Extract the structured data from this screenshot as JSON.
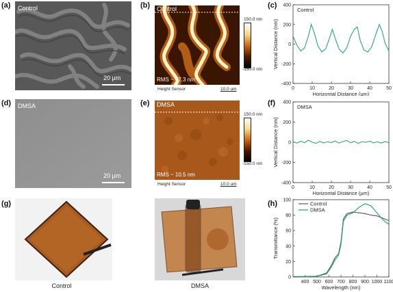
{
  "panel_labels": {
    "a": "(a)",
    "b": "(b)",
    "c": "(c)",
    "d": "(d)",
    "e": "(e)",
    "f": "(f)",
    "g": "(g)",
    "h": "(h)"
  },
  "sem": {
    "a_label": "Control",
    "a_scale": "20 μm",
    "d_label": "DMSA",
    "d_scale": "20 μm"
  },
  "afm": {
    "b_label": "Control",
    "b_rms": "RMS ~ 77.3 nm",
    "b_sensor": "Height Sensor",
    "b_scale": "10.0 um",
    "b_cb_top": "150.0 nm",
    "b_cb_bottom": "-150.0 nm",
    "e_label": "DMSA",
    "e_rms": "RMS ~ 10.5 nm",
    "e_sensor": "Height Sensor",
    "e_scale": "10.0 um",
    "e_cb_top": "150.0 nm",
    "e_cb_bottom": "-150.0 nm"
  },
  "photos": {
    "g_left_caption": "Control",
    "g_right_caption": "DMSA"
  },
  "colors": {
    "trace": "#2aa383",
    "control_line": "#555555",
    "dmsa_line": "#1a9a7e"
  },
  "chart_data": [
    {
      "id": "c",
      "type": "line",
      "legend_text": "Control",
      "xlabel": "Horizontal Distance (μm)",
      "ylabel": "Vertical Distance (nm)",
      "xlim": [
        0,
        50
      ],
      "ylim": [
        -400,
        400
      ],
      "xticks": [
        0,
        10,
        20,
        30,
        40,
        50
      ],
      "yticks": [
        -400,
        -200,
        0,
        200,
        400
      ],
      "x": [
        0,
        2,
        4,
        6,
        8,
        9.5,
        11,
        13,
        15,
        17,
        19,
        20.5,
        22,
        24,
        26,
        28,
        30,
        32,
        33.5,
        35,
        37,
        39,
        41,
        43,
        45,
        46.5,
        48,
        50
      ],
      "y": [
        80,
        -10,
        -70,
        -40,
        80,
        200,
        120,
        -20,
        -80,
        -50,
        60,
        150,
        60,
        -50,
        -90,
        -40,
        80,
        150,
        175,
        40,
        -60,
        -80,
        -30,
        90,
        200,
        130,
        10,
        -70
      ]
    },
    {
      "id": "f",
      "type": "line",
      "legend_text": "DMSA",
      "xlabel": "Horizontal Distance (μm)",
      "ylabel": "Vertical Distance (nm)",
      "xlim": [
        0,
        50
      ],
      "ylim": [
        -400,
        400
      ],
      "xticks": [
        0,
        10,
        20,
        30,
        40,
        50
      ],
      "yticks": [
        -400,
        -200,
        0,
        200,
        400
      ],
      "x": [
        0,
        2,
        4,
        6,
        8,
        10,
        12,
        14,
        16,
        18,
        20,
        22,
        24,
        26,
        28,
        30,
        32,
        34,
        36,
        38,
        40,
        42,
        44,
        46,
        48,
        50
      ],
      "y": [
        5,
        -8,
        10,
        -5,
        20,
        0,
        -10,
        8,
        -6,
        4,
        -3,
        12,
        -8,
        6,
        18,
        -5,
        8,
        -10,
        5,
        0,
        10,
        -6,
        4,
        -8,
        6,
        -4
      ]
    },
    {
      "id": "h",
      "type": "line",
      "xlabel": "Wavelength (nm)",
      "ylabel": "Transmittance (%)",
      "xlim": [
        300,
        1100
      ],
      "ylim": [
        0,
        100
      ],
      "xticks": [
        400,
        500,
        600,
        700,
        800,
        900,
        1000,
        1100
      ],
      "yticks": [
        0,
        20,
        40,
        60,
        80,
        100
      ],
      "series": [
        {
          "name": "Control",
          "x": [
            300,
            400,
            500,
            580,
            620,
            650,
            680,
            700,
            720,
            750,
            800,
            850,
            900,
            950,
            1000,
            1050,
            1100
          ],
          "y": [
            0.5,
            0.5,
            1,
            5,
            15,
            25,
            30,
            45,
            75,
            82,
            84,
            83,
            82,
            80,
            79,
            76,
            73
          ]
        },
        {
          "name": "DMSA",
          "x": [
            300,
            400,
            500,
            580,
            620,
            650,
            680,
            700,
            720,
            750,
            800,
            850,
            900,
            950,
            1000,
            1050,
            1100
          ],
          "y": [
            0.5,
            0.5,
            1,
            4,
            13,
            22,
            28,
            42,
            72,
            80,
            83,
            90,
            95,
            92,
            83,
            74,
            68
          ]
        }
      ]
    }
  ]
}
